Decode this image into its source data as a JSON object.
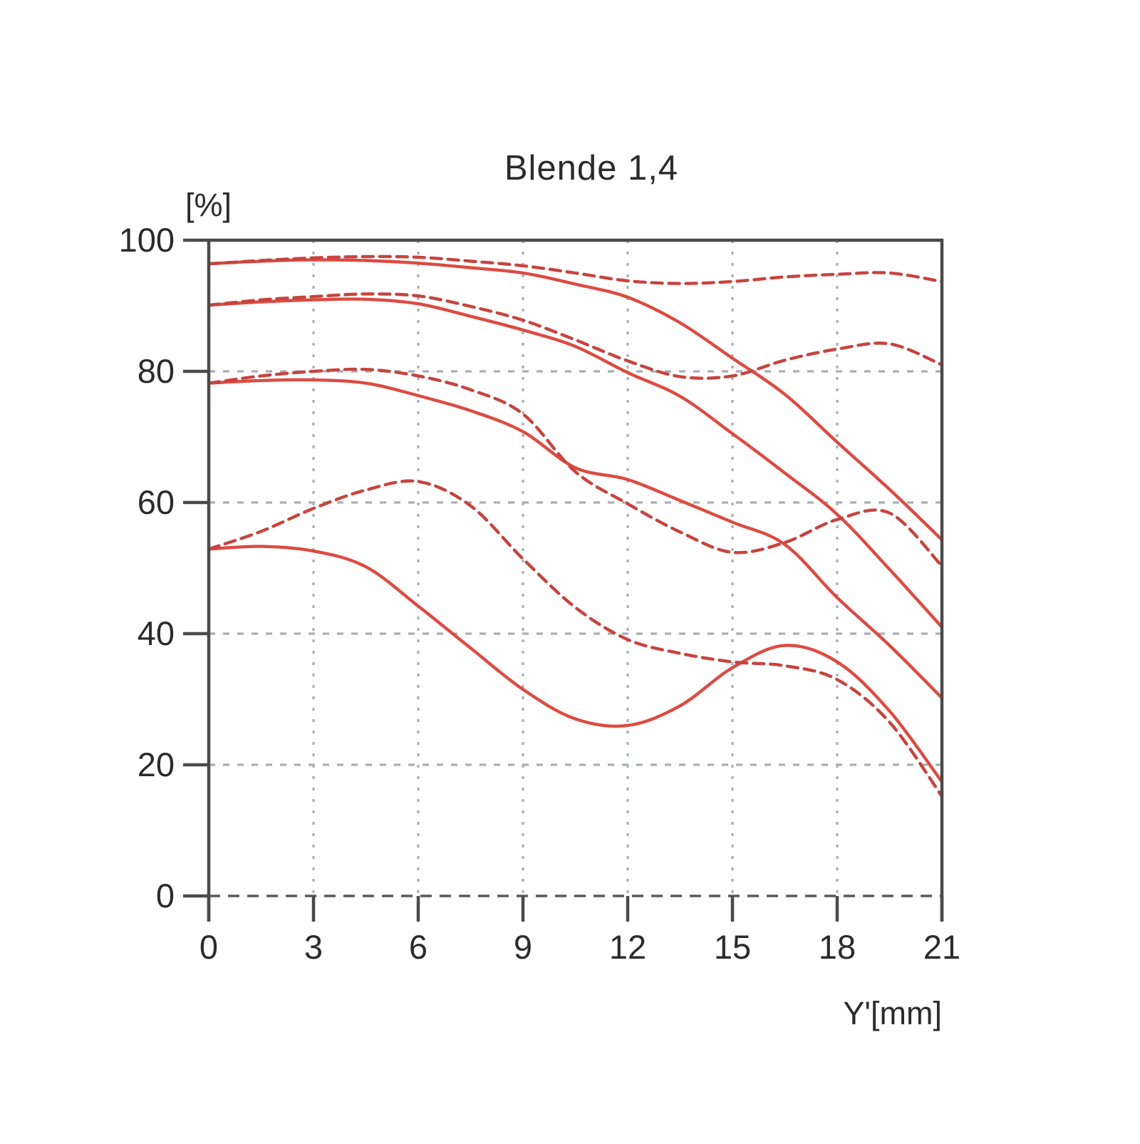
{
  "title": "Blende 1,4",
  "y_axis": {
    "unit_label": "[%]",
    "ticks": [
      0,
      20,
      40,
      60,
      80,
      100
    ]
  },
  "x_axis": {
    "label": "Y'[mm]",
    "ticks": [
      0,
      3,
      6,
      9,
      12,
      15,
      18,
      21
    ]
  },
  "colors": {
    "curve_solid": "#dc4b42",
    "curve_dashed": "#c6443e",
    "grid": "#a9aeb4",
    "zero_line": "#5a5a5a",
    "axis": "#4a4a4a",
    "text": "#2b2b2b",
    "background": "#ffffff"
  },
  "chart_data": {
    "type": "line",
    "title": "Blende 1,4",
    "xlabel": "Y'[mm]",
    "ylabel": "[%]",
    "xlim": [
      0,
      21
    ],
    "ylim": [
      0,
      100
    ],
    "x_ticks": [
      0,
      3,
      6,
      9,
      12,
      15,
      18,
      21
    ],
    "y_ticks": [
      0,
      20,
      40,
      60,
      80,
      100
    ],
    "grid": "dotted gray vertical at 3..18, dashed gray horizontal at 20..80, dashed dark baseline at 0",
    "legend": "none",
    "x": [
      0,
      1.5,
      3,
      4.5,
      6,
      7.5,
      9,
      10.5,
      12,
      13.5,
      15,
      16.5,
      18,
      19.5,
      21
    ],
    "series": [
      {
        "name": "pair-1-solid",
        "style": "solid",
        "values": [
          96.4,
          96.8,
          97.0,
          96.9,
          96.5,
          95.8,
          95.0,
          93.3,
          91.3,
          87.4,
          82.0,
          76.5,
          69.2,
          62.0,
          54.3
        ]
      },
      {
        "name": "pair-1-dashed",
        "style": "dashed",
        "values": [
          96.4,
          96.9,
          97.3,
          97.5,
          97.4,
          96.8,
          96.1,
          95.0,
          93.8,
          93.4,
          93.7,
          94.4,
          94.8,
          95.0,
          93.7
        ]
      },
      {
        "name": "pair-2-solid",
        "style": "solid",
        "values": [
          90.1,
          90.6,
          90.9,
          91.0,
          90.3,
          88.4,
          86.3,
          83.8,
          79.8,
          76.2,
          70.5,
          64.5,
          58.2,
          49.8,
          41.0
        ]
      },
      {
        "name": "pair-2-dashed",
        "style": "dashed",
        "values": [
          90.1,
          90.9,
          91.4,
          91.8,
          91.5,
          89.9,
          87.8,
          84.8,
          81.6,
          79.2,
          79.3,
          81.7,
          83.4,
          84.2,
          81.0
        ]
      },
      {
        "name": "pair-3-solid",
        "style": "solid",
        "values": [
          78.2,
          78.6,
          78.7,
          78.2,
          76.3,
          74.0,
          70.8,
          65.3,
          63.5,
          60.3,
          57.0,
          53.6,
          45.5,
          38.2,
          30.2
        ]
      },
      {
        "name": "pair-3-dashed",
        "style": "dashed",
        "values": [
          78.2,
          79.3,
          80.0,
          80.3,
          79.3,
          77.2,
          73.5,
          64.7,
          59.8,
          55.5,
          52.4,
          53.9,
          57.4,
          58.4,
          50.3
        ]
      },
      {
        "name": "pair-4-solid",
        "style": "solid",
        "values": [
          52.9,
          53.3,
          52.6,
          50.2,
          44.2,
          37.8,
          31.5,
          27.0,
          26.0,
          29.0,
          34.8,
          38.2,
          35.7,
          28.2,
          17.4
        ]
      },
      {
        "name": "pair-4-dashed",
        "style": "dashed",
        "values": [
          52.9,
          55.6,
          59.1,
          61.9,
          63.2,
          59.5,
          51.4,
          44.0,
          39.1,
          37.0,
          35.7,
          35.1,
          33.0,
          26.5,
          15.2
        ]
      }
    ]
  }
}
